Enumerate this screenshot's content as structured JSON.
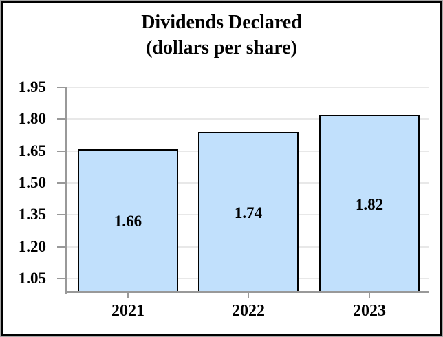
{
  "title": {
    "line1": "Dividends Declared",
    "line2": "(dollars per share)"
  },
  "chart_data": {
    "type": "bar",
    "title": "Dividends Declared (dollars per share)",
    "categories": [
      "2021",
      "2022",
      "2023"
    ],
    "values": [
      1.66,
      1.74,
      1.82
    ],
    "bar_labels": [
      "1.66",
      "1.74",
      "1.82"
    ],
    "y_tick_values": [
      1.95,
      1.8,
      1.65,
      1.5,
      1.35,
      1.2,
      1.05
    ],
    "y_tick_labels": [
      "1.95",
      "1.80",
      "1.65",
      "1.50",
      "1.35",
      "1.20",
      "1.05"
    ],
    "ylim": [
      0.99,
      1.95
    ],
    "xlabel": "",
    "ylabel": "",
    "grid": true,
    "legend": "none",
    "colors": {
      "bar_fill": "#c1e0fc",
      "bar_border": "#000000",
      "gridline": "#e8e8e8",
      "axis": "#999999",
      "text": "#000000",
      "frame_border": "#000000",
      "frame_outer_edge": "#a6a6a6"
    }
  }
}
